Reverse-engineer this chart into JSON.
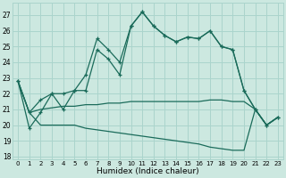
{
  "xlabel": "Humidex (Indice chaleur)",
  "background_color": "#cce8e0",
  "grid_color": "#aad4cc",
  "line_color": "#1a6b5a",
  "xlim": [
    -0.5,
    23.5
  ],
  "ylim": [
    17.8,
    27.8
  ],
  "yticks": [
    18,
    19,
    20,
    21,
    22,
    23,
    24,
    25,
    26,
    27
  ],
  "xticks": [
    0,
    1,
    2,
    3,
    4,
    5,
    6,
    7,
    8,
    9,
    10,
    11,
    12,
    13,
    14,
    15,
    16,
    17,
    18,
    19,
    20,
    21,
    22,
    23
  ],
  "xtick_labels": [
    "0",
    "1",
    "2",
    "3",
    "4",
    "5",
    "6",
    "7",
    "8",
    "9",
    "10",
    "11",
    "12",
    "13",
    "14",
    "15",
    "16",
    "17",
    "18",
    "19",
    "20",
    "21",
    "22",
    "23"
  ],
  "curve_main": [
    22.8,
    19.8,
    20.8,
    22.0,
    22.0,
    22.2,
    23.2,
    25.5,
    24.8,
    24.0,
    26.3,
    27.2,
    26.3,
    25.7,
    25.3,
    25.6,
    25.5,
    26.0,
    25.0,
    24.8,
    22.2,
    21.0,
    20.0,
    20.5
  ],
  "curve_second": [
    22.8,
    20.8,
    21.6,
    22.0,
    21.0,
    22.2,
    22.2,
    24.8,
    24.2,
    23.2,
    26.3,
    27.2,
    26.3,
    25.7,
    25.3,
    25.6,
    25.5,
    26.0,
    25.0,
    24.8,
    22.2,
    21.0,
    20.0,
    20.5
  ],
  "curve_lower": [
    22.8,
    20.8,
    20.0,
    20.0,
    20.0,
    20.0,
    19.8,
    19.7,
    19.6,
    19.5,
    19.4,
    19.3,
    19.2,
    19.1,
    19.0,
    18.9,
    18.8,
    18.6,
    18.5,
    18.4,
    18.4,
    21.0,
    20.0,
    20.5
  ],
  "curve_upper": [
    22.8,
    20.8,
    21.0,
    21.1,
    21.2,
    21.2,
    21.3,
    21.3,
    21.4,
    21.4,
    21.5,
    21.5,
    21.5,
    21.5,
    21.5,
    21.5,
    21.5,
    21.6,
    21.6,
    21.5,
    21.5,
    21.0,
    20.0,
    20.5
  ]
}
